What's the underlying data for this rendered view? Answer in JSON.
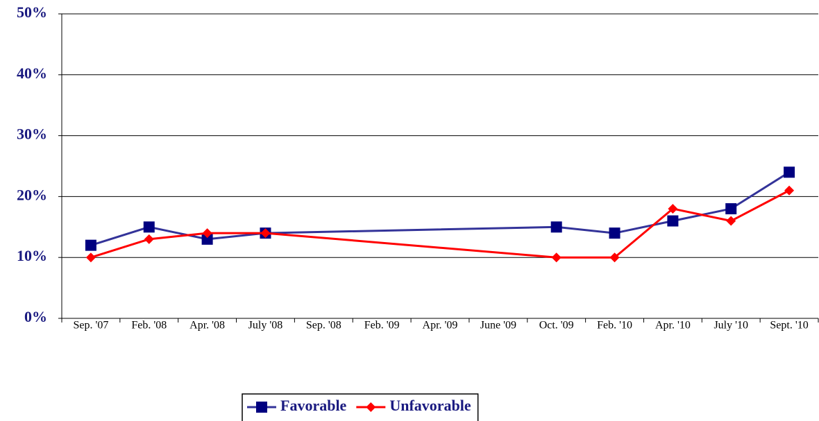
{
  "chart_data": {
    "type": "line",
    "categories": [
      "Sep. '07",
      "Feb. '08",
      "Apr. '08",
      "July '08",
      "Sep. '08",
      "Feb. '09",
      "Apr. '09",
      "June '09",
      "Oct. '09",
      "Feb. '10",
      "Apr. '10",
      "July '10",
      "Sept. '10"
    ],
    "series": [
      {
        "name": "Favorable",
        "color": "#333399",
        "marker_color": "#000080",
        "marker": "square",
        "values": [
          12,
          15,
          13,
          14,
          null,
          null,
          null,
          null,
          15,
          14,
          16,
          18,
          24
        ]
      },
      {
        "name": "Unfavorable",
        "color": "#ff0000",
        "marker_color": "#ff0000",
        "marker": "diamond",
        "values": [
          10,
          13,
          14,
          14,
          null,
          null,
          null,
          null,
          10,
          10,
          18,
          16,
          21
        ]
      }
    ],
    "ylim": [
      0,
      50
    ],
    "yticks": [
      {
        "value": 0,
        "label": "0%"
      },
      {
        "value": 10,
        "label": "10%"
      },
      {
        "value": 20,
        "label": "20%"
      },
      {
        "value": 30,
        "label": "30%"
      },
      {
        "value": 40,
        "label": "40%"
      },
      {
        "value": 50,
        "label": "50%"
      }
    ],
    "grid": true,
    "connect_gaps": true,
    "legend": "bottom"
  }
}
